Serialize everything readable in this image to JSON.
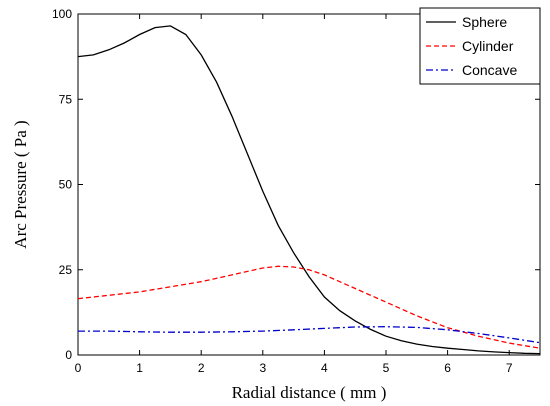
{
  "chart_data": {
    "type": "line",
    "xlabel": "Radial distance ( mm )",
    "ylabel": "Arc Pressure ( Pa )",
    "xlim": [
      0,
      7.5
    ],
    "ylim": [
      0,
      100
    ],
    "xticks": [
      0,
      1,
      2,
      3,
      4,
      5,
      6,
      7
    ],
    "yticks": [
      0,
      25,
      50,
      75,
      100
    ],
    "grid": false,
    "legend_position": "top-right",
    "series": [
      {
        "name": "Sphere",
        "color": "#000000",
        "dash": "solid",
        "x": [
          0,
          0.25,
          0.5,
          0.75,
          1.0,
          1.25,
          1.5,
          1.75,
          2.0,
          2.25,
          2.5,
          2.75,
          3.0,
          3.25,
          3.5,
          3.75,
          4.0,
          4.25,
          4.5,
          4.75,
          5.0,
          5.25,
          5.5,
          5.75,
          6.0,
          6.25,
          6.5,
          6.75,
          7.0,
          7.25,
          7.5
        ],
        "y": [
          87.5,
          88,
          89.5,
          91.5,
          94,
          96,
          96.5,
          94,
          88,
          80,
          70,
          59,
          48,
          38,
          30,
          23,
          17,
          13,
          10,
          7.5,
          5.5,
          4.2,
          3.2,
          2.5,
          2.0,
          1.6,
          1.2,
          0.9,
          0.7,
          0.5,
          0.4
        ]
      },
      {
        "name": "Cylinder",
        "color": "#ff0000",
        "dash": "dashed",
        "x": [
          0,
          0.5,
          1.0,
          1.5,
          2.0,
          2.5,
          3.0,
          3.25,
          3.5,
          3.75,
          4.0,
          4.5,
          5.0,
          5.5,
          6.0,
          6.5,
          7.0,
          7.5
        ],
        "y": [
          16.5,
          17.5,
          18.5,
          20,
          21.5,
          23.5,
          25.5,
          26,
          25.8,
          25,
          23.5,
          19.5,
          15.5,
          11.5,
          8,
          5.5,
          3.5,
          2.0
        ]
      },
      {
        "name": "Concave",
        "color": "#0000cc",
        "dash": "dashdot",
        "x": [
          0,
          0.5,
          1.0,
          1.5,
          2.0,
          2.5,
          3.0,
          3.5,
          4.0,
          4.5,
          5.0,
          5.5,
          6.0,
          6.5,
          7.0,
          7.5
        ],
        "y": [
          7.0,
          7.0,
          6.8,
          6.7,
          6.7,
          6.8,
          7.0,
          7.4,
          7.8,
          8.2,
          8.3,
          8.1,
          7.4,
          6.3,
          5.0,
          3.6
        ]
      }
    ]
  }
}
